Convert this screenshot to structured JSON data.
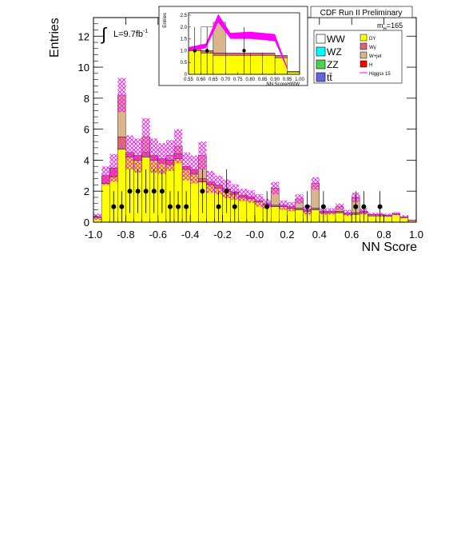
{
  "chart_data": {
    "type": "bar",
    "title": "CDF Run II Preliminary",
    "xlabel": "NN Score",
    "ylabel": "Entries",
    "xlim": [
      -1.0,
      1.0
    ],
    "ylim": [
      0,
      13.2
    ],
    "x_ticks": [
      "-1.0",
      "-0.8",
      "-0.6",
      "-0.4",
      "-0.2",
      "-0.0",
      "0.2",
      "0.4",
      "0.6",
      "0.8",
      "1.0"
    ],
    "y_ticks": [
      "0",
      "2",
      "4",
      "6",
      "8",
      "10",
      "12"
    ],
    "luminosity_label": "L=9.7fb",
    "luminosity_exponent": "-1",
    "mass_label": "m",
    "mass_sub": "H",
    "mass_value": "=165",
    "bin_edges_start": -1.0,
    "bin_width": 0.05,
    "stack": {
      "dy": [
        0.3,
        2.5,
        2.9,
        4.7,
        4.2,
        4.0,
        4.2,
        4.0,
        3.8,
        3.7,
        4.1,
        3.4,
        3.1,
        2.6,
        2.4,
        2.2,
        2.0,
        1.8,
        1.6,
        1.5,
        1.3,
        1.1,
        1.0,
        1.0,
        0.9,
        0.8,
        0.7,
        0.8,
        0.6,
        0.6,
        0.6,
        0.5,
        0.5,
        0.6,
        0.4,
        0.4,
        0.4,
        0.5,
        0.3,
        0.1
      ],
      "wg": [
        0.05,
        0.5,
        0.6,
        0.8,
        0.3,
        0.3,
        0.3,
        0.3,
        0.3,
        0.3,
        0.3,
        0.2,
        0.3,
        0.2,
        0.2,
        0.2,
        0.15,
        0.15,
        0.15,
        0.15,
        0.1,
        0.1,
        0.1,
        0.1,
        0.1,
        0.1,
        0.1,
        0.1,
        0.1,
        0.1,
        0.1,
        0.1,
        0.1,
        0.1,
        0.1,
        0.1,
        0.05,
        0.05,
        0.05,
        0.02
      ],
      "wjet": [
        0.0,
        0.0,
        0.0,
        2.7,
        0.0,
        0.0,
        1.0,
        0.0,
        0.0,
        0.3,
        0.5,
        0.0,
        0.0,
        1.5,
        0.0,
        0.0,
        0.0,
        0.0,
        0.0,
        0.0,
        0.0,
        0.0,
        1.1,
        0.0,
        0.0,
        0.6,
        0.0,
        1.6,
        0.0,
        0.0,
        0.3,
        0.0,
        1.0,
        0.0,
        0.0,
        0.0,
        0.0,
        0.0,
        0.0,
        0.0
      ],
      "h": [
        0.0,
        0.0,
        0.0,
        0.0,
        0.0,
        0.0,
        0.0,
        0.0,
        0.0,
        0.0,
        0.0,
        0.0,
        0.0,
        0.0,
        0.0,
        0.0,
        0.0,
        0.0,
        0.0,
        0.0,
        0.0,
        0.0,
        0.0,
        0.0,
        0.0,
        0.0,
        0.0,
        0.0,
        0.0,
        0.0,
        0.0,
        0.0,
        0.0,
        0.0,
        0.0,
        0.0,
        0.0,
        0.0,
        0.0,
        0.0
      ]
    },
    "uncertainty": [
      0.2,
      0.6,
      0.9,
      1.1,
      1.1,
      1.1,
      1.2,
      1.1,
      1.0,
      1.0,
      1.1,
      0.9,
      0.9,
      0.9,
      0.7,
      0.6,
      0.6,
      0.5,
      0.4,
      0.4,
      0.4,
      0.3,
      0.4,
      0.3,
      0.3,
      0.3,
      0.3,
      0.4,
      0.2,
      0.2,
      0.2,
      0.2,
      0.3,
      0.2,
      0.1,
      0.1,
      0.1,
      0.1,
      0.1,
      0.05
    ],
    "data_points": [
      {
        "x": -0.875,
        "y": 1
      },
      {
        "x": -0.825,
        "y": 1
      },
      {
        "x": -0.775,
        "y": 2
      },
      {
        "x": -0.725,
        "y": 2
      },
      {
        "x": -0.675,
        "y": 2
      },
      {
        "x": -0.625,
        "y": 2
      },
      {
        "x": -0.575,
        "y": 2
      },
      {
        "x": -0.525,
        "y": 1
      },
      {
        "x": -0.475,
        "y": 1
      },
      {
        "x": -0.425,
        "y": 1
      },
      {
        "x": -0.325,
        "y": 2
      },
      {
        "x": -0.225,
        "y": 1
      },
      {
        "x": -0.175,
        "y": 2
      },
      {
        "x": -0.125,
        "y": 1
      },
      {
        "x": 0.075,
        "y": 1
      },
      {
        "x": 0.325,
        "y": 1
      },
      {
        "x": 0.425,
        "y": 1
      },
      {
        "x": 0.625,
        "y": 1
      },
      {
        "x": 0.675,
        "y": 1
      },
      {
        "x": 0.775,
        "y": 1
      }
    ],
    "legend": [
      {
        "key": "ww",
        "label": "WW",
        "color": "#ffffff"
      },
      {
        "key": "dy",
        "label": "DY",
        "color": "#ffff00"
      },
      {
        "key": "wz",
        "label": "WZ",
        "color": "#00ffff"
      },
      {
        "key": "wg",
        "label": "Wγ",
        "color": "#d9657a"
      },
      {
        "key": "zz",
        "label": "ZZ",
        "color": "#4bd24b"
      },
      {
        "key": "wjet",
        "label": "W+jet",
        "color": "#d9b48c"
      },
      {
        "key": "tt",
        "label": "tt̄",
        "color": "#6464dc"
      },
      {
        "key": "h",
        "label": "H",
        "color": "#ff0000"
      },
      {
        "key": "higgs",
        "label": "Higgsx 15",
        "color": "#ff00ff"
      }
    ],
    "inset": {
      "xlabel": "NN ScoreHWW",
      "ylabel": "Entries",
      "xlim": [
        0.55,
        1.0
      ],
      "ylim": [
        0,
        2.6
      ],
      "x_ticks": [
        "0.55",
        "0.60",
        "0.65",
        "0.70",
        "0.75",
        "0.80",
        "0.85",
        "0.90",
        "0.95",
        "1.00"
      ],
      "y_ticks": [
        "0",
        "0.5",
        "1.0",
        "1.5",
        "2.0",
        "2.5"
      ],
      "bin_edges": [
        0.55,
        0.6,
        0.65,
        0.7,
        0.8,
        0.85,
        0.9,
        0.95,
        1.0
      ],
      "dy": [
        1.0,
        0.9,
        0.8,
        0.8,
        0.8,
        0.8,
        0.7,
        0.1
      ],
      "wg": [
        0.1,
        0.1,
        0.1,
        0.1,
        0.1,
        0.1,
        0.1,
        0.02
      ],
      "wjet": [
        0.0,
        0.0,
        1.3,
        0.0,
        0.0,
        0.0,
        0.0,
        0.0
      ],
      "ww": [
        0.0,
        1.0,
        0.0,
        0.0,
        0.0,
        0.0,
        0.0,
        0.0
      ],
      "signal_band": [
        {
          "x": 0.55,
          "lo": 1.0,
          "hi": 1.15
        },
        {
          "x": 0.62,
          "lo": 1.1,
          "hi": 1.3
        },
        {
          "x": 0.67,
          "lo": 2.2,
          "hi": 2.55
        },
        {
          "x": 0.72,
          "lo": 1.5,
          "hi": 1.75
        },
        {
          "x": 0.8,
          "lo": 1.5,
          "hi": 1.8
        },
        {
          "x": 0.85,
          "lo": 1.45,
          "hi": 1.75
        },
        {
          "x": 0.9,
          "lo": 1.4,
          "hi": 1.7
        },
        {
          "x": 0.95,
          "lo": 0.2,
          "hi": 0.3
        }
      ],
      "data_points": [
        {
          "x": 0.575,
          "y": 1
        },
        {
          "x": 0.625,
          "y": 1
        },
        {
          "x": 0.775,
          "y": 1
        }
      ]
    }
  }
}
